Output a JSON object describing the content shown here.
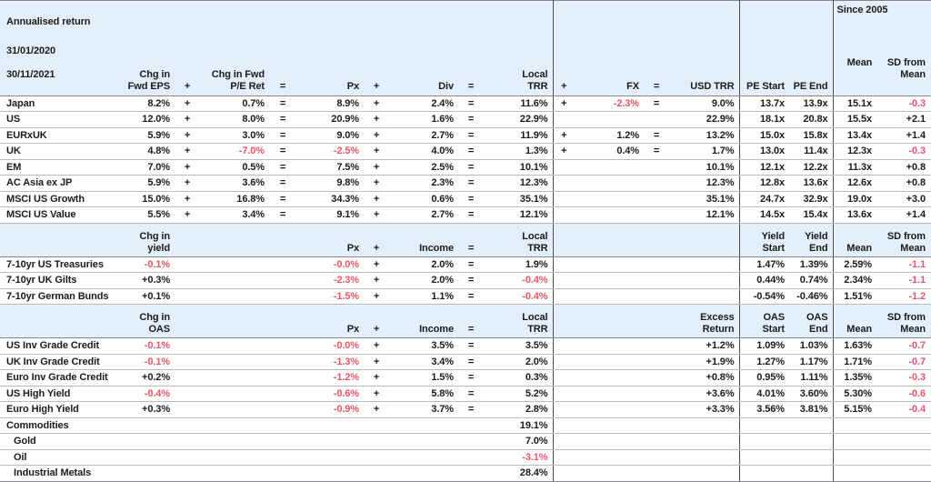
{
  "meta": {
    "title": "Annualised return",
    "date_from": "31/01/2020",
    "date_to": "30/11/2021",
    "since_label": "Since 2005"
  },
  "colors": {
    "header_bg": "#e3f0fb",
    "negative": "#ee5566",
    "text": "#1b1b1b"
  },
  "top_header": {
    "v1": "Chg in\nFwd EPS",
    "o1": "+",
    "v2": "Chg in Fwd\nP/E Ret",
    "o2": "=",
    "px": "Px",
    "o3": "+",
    "inc": "Div",
    "o4": "=",
    "ltrr": "Local\nTRR",
    "o5": "+",
    "fx": "FX",
    "o6": "=",
    "utrr": "USD TRR",
    "ps": "PE Start",
    "pe": "PE End",
    "mean": "Mean",
    "sd": "SD from\nMean"
  },
  "sections": [
    {
      "rows": [
        {
          "label": "Japan",
          "cells": {
            "v1": "8.2%",
            "o1": "+",
            "v2": "0.7%",
            "o2": "=",
            "px": "8.9%",
            "o3": "+",
            "inc": "2.4%",
            "o4": "=",
            "ltrr": "11.6%",
            "o5": "+",
            "fx": "!-2.3%",
            "o6": "=",
            "utrr": "9.0%",
            "ps": "13.7x",
            "pe": "13.9x",
            "mean": "15.1x",
            "sd": "!-0.3"
          }
        },
        {
          "label": "US",
          "cells": {
            "v1": "12.0%",
            "o1": "+",
            "v2": "8.0%",
            "o2": "=",
            "px": "20.9%",
            "o3": "+",
            "inc": "1.6%",
            "o4": "=",
            "ltrr": "22.9%",
            "utrr": "22.9%",
            "ps": "18.1x",
            "pe": "20.8x",
            "mean": "15.5x",
            "sd": "+2.1"
          }
        },
        {
          "label": "EURxUK",
          "cells": {
            "v1": "5.9%",
            "o1": "+",
            "v2": "3.0%",
            "o2": "=",
            "px": "9.0%",
            "o3": "+",
            "inc": "2.7%",
            "o4": "=",
            "ltrr": "11.9%",
            "o5": "+",
            "fx": "1.2%",
            "o6": "=",
            "utrr": "13.2%",
            "ps": "15.0x",
            "pe": "15.8x",
            "mean": "13.4x",
            "sd": "+1.4"
          }
        },
        {
          "label": "UK",
          "cells": {
            "v1": "4.8%",
            "o1": "+",
            "v2": "!-7.0%",
            "o2": "=",
            "px": "!-2.5%",
            "o3": "+",
            "inc": "4.0%",
            "o4": "=",
            "ltrr": "1.3%",
            "o5": "+",
            "fx": "0.4%",
            "o6": "=",
            "utrr": "1.7%",
            "ps": "13.0x",
            "pe": "11.4x",
            "mean": "12.3x",
            "sd": "!-0.3"
          }
        },
        {
          "label": "EM",
          "cells": {
            "v1": "7.0%",
            "o1": "+",
            "v2": "0.5%",
            "o2": "=",
            "px": "7.5%",
            "o3": "+",
            "inc": "2.5%",
            "o4": "=",
            "ltrr": "10.1%",
            "utrr": "10.1%",
            "ps": "12.1x",
            "pe": "12.2x",
            "mean": "11.3x",
            "sd": "+0.8"
          }
        },
        {
          "label": "AC Asia ex JP",
          "cells": {
            "v1": "5.9%",
            "o1": "+",
            "v2": "3.6%",
            "o2": "=",
            "px": "9.8%",
            "o3": "+",
            "inc": "2.3%",
            "o4": "=",
            "ltrr": "12.3%",
            "utrr": "12.3%",
            "ps": "12.8x",
            "pe": "13.6x",
            "mean": "12.6x",
            "sd": "+0.8"
          }
        },
        {
          "label": "MSCI US Growth",
          "cells": {
            "v1": "15.0%",
            "o1": "+",
            "v2": "16.8%",
            "o2": "=",
            "px": "34.3%",
            "o3": "+",
            "inc": "0.6%",
            "o4": "=",
            "ltrr": "35.1%",
            "utrr": "35.1%",
            "ps": "24.7x",
            "pe": "32.9x",
            "mean": "19.0x",
            "sd": "+3.0"
          }
        },
        {
          "label": "MSCI US Value",
          "cells": {
            "v1": "5.5%",
            "o1": "+",
            "v2": "3.4%",
            "o2": "=",
            "px": "9.1%",
            "o3": "+",
            "inc": "2.7%",
            "o4": "=",
            "ltrr": "12.1%",
            "utrr": "12.1%",
            "ps": "14.5x",
            "pe": "15.4x",
            "mean": "13.6x",
            "sd": "+1.4"
          }
        }
      ]
    },
    {
      "band": {
        "v1": "Chg in\nyield",
        "px": "Px",
        "o3": "+",
        "inc": "Income",
        "o4": "=",
        "ltrr": "Local\nTRR",
        "ps": "Yield\nStart",
        "pe": "Yield End",
        "mean": "Mean",
        "sd": "SD from\nMean"
      },
      "rows": [
        {
          "label": "7-10yr US Treasuries",
          "cells": {
            "v1": "!-0.1%",
            "px": "!-0.0%",
            "o3": "+",
            "inc": "2.0%",
            "o4": "=",
            "ltrr": "1.9%",
            "ps": "1.47%",
            "pe": "1.39%",
            "mean": "2.59%",
            "sd": "!-1.1"
          }
        },
        {
          "label": "7-10yr UK Gilts",
          "cells": {
            "v1": "+0.3%",
            "px": "!-2.3%",
            "o3": "+",
            "inc": "2.0%",
            "o4": "=",
            "ltrr": "!-0.4%",
            "ps": "0.44%",
            "pe": "0.74%",
            "mean": "2.34%",
            "sd": "!-1.1"
          }
        },
        {
          "label": "7-10yr German Bunds",
          "cells": {
            "v1": "+0.1%",
            "px": "!-1.5%",
            "o3": "+",
            "inc": "1.1%",
            "o4": "=",
            "ltrr": "!-0.4%",
            "ps": "-0.54%",
            "pe": "-0.46%",
            "mean": "1.51%",
            "sd": "!-1.2"
          }
        }
      ]
    },
    {
      "band": {
        "v1": "Chg in\nOAS",
        "px": "Px",
        "o3": "+",
        "inc": "Income",
        "o4": "=",
        "ltrr": "Local\nTRR",
        "utrr": "Excess\nReturn",
        "ps": "OAS\nStart",
        "pe": "OAS End",
        "mean": "Mean",
        "sd": "SD from\nMean"
      },
      "rows": [
        {
          "label": "US Inv Grade Credit",
          "cells": {
            "v1": "!-0.1%",
            "px": "!-0.0%",
            "o3": "+",
            "inc": "3.5%",
            "o4": "=",
            "ltrr": "3.5%",
            "utrr": "+1.2%",
            "ps": "1.09%",
            "pe": "1.03%",
            "mean": "1.63%",
            "sd": "!-0.7"
          }
        },
        {
          "label": "UK Inv Grade Credit",
          "cells": {
            "v1": "!-0.1%",
            "px": "!-1.3%",
            "o3": "+",
            "inc": "3.4%",
            "o4": "=",
            "ltrr": "2.0%",
            "utrr": "+1.9%",
            "ps": "1.27%",
            "pe": "1.17%",
            "mean": "1.71%",
            "sd": "!-0.7"
          }
        },
        {
          "label": "Euro Inv Grade Credit",
          "cells": {
            "v1": "+0.2%",
            "px": "!-1.2%",
            "o3": "+",
            "inc": "1.5%",
            "o4": "=",
            "ltrr": "0.3%",
            "utrr": "+0.8%",
            "ps": "0.95%",
            "pe": "1.11%",
            "mean": "1.35%",
            "sd": "!-0.3"
          }
        },
        {
          "label": "US High Yield",
          "cells": {
            "v1": "!-0.4%",
            "px": "!-0.6%",
            "o3": "+",
            "inc": "5.8%",
            "o4": "=",
            "ltrr": "5.2%",
            "utrr": "+3.6%",
            "ps": "4.01%",
            "pe": "3.60%",
            "mean": "5.30%",
            "sd": "!-0.6"
          }
        },
        {
          "label": "Euro High Yield",
          "cells": {
            "v1": "+0.3%",
            "px": "!-0.9%",
            "o3": "+",
            "inc": "3.7%",
            "o4": "=",
            "ltrr": "2.8%",
            "utrr": "+3.3%",
            "ps": "3.56%",
            "pe": "3.81%",
            "mean": "5.15%",
            "sd": "!-0.4"
          }
        }
      ]
    },
    {
      "rows": [
        {
          "label": "Commodities",
          "cells": {
            "ltrr": "19.1%"
          }
        },
        {
          "label": "Gold",
          "indent": true,
          "cells": {
            "ltrr": "7.0%"
          }
        },
        {
          "label": "Oil",
          "indent": true,
          "cells": {
            "ltrr": "!-3.1%"
          }
        },
        {
          "label": "Industrial Metals",
          "indent": true,
          "cells": {
            "ltrr": "28.4%"
          }
        }
      ]
    }
  ]
}
